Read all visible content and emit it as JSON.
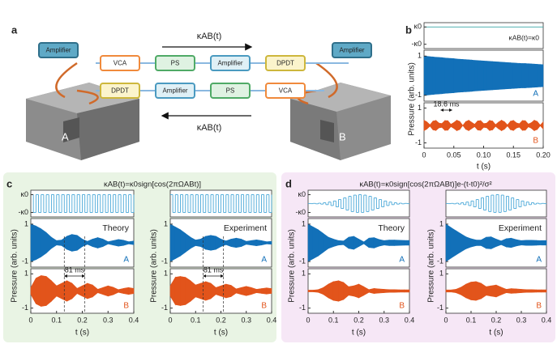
{
  "diagram": {
    "label": "a",
    "arrow_top": "κAB(t)",
    "arrow_bottom": "κAB(t)",
    "blocks": [
      "A",
      "B"
    ],
    "boxes": [
      "Amplifier",
      "VCA",
      "PS",
      "Amplifier",
      "DPDT",
      "Amplifier",
      "DPDT",
      "Amplifier",
      "PS",
      "VCA"
    ]
  },
  "panels": [
    {
      "label": "b"
    },
    {
      "label": "c",
      "title": "κAB(t)=κ0sign[cos(2πΩABt)]"
    },
    {
      "label": "d",
      "title": "κAB(t)=κ0sign[cos(2πΩABt)]e-(t-t0)²/σ²"
    }
  ],
  "chart_data": [
    {
      "type": "area",
      "title": "κAB(t)=κ0",
      "xlabel": "t (s)",
      "ylabel": "Pressure (arb. units)",
      "xlim": [
        0,
        0.2
      ],
      "xticks": [
        0,
        0.05,
        {
          "value": 0.1,
          "label": "0.10"
        },
        0.15,
        {
          "value": 0.2,
          "label": "0.20"
        }
      ],
      "ylim": [
        -1.3,
        1.3
      ],
      "yticks": [
        1,
        -1
      ],
      "kappa_ylim": [
        -1.5,
        1.5
      ],
      "kappa_ticks": [
        {
          "value": 1,
          "label": "κ0"
        },
        {
          "value": -1,
          "label": "-κ0"
        }
      ],
      "kappa_color": "#3aa6a6",
      "kappa": {
        "x": [
          0,
          0.2
        ],
        "values": [
          1,
          1
        ]
      },
      "annotation": "18.6 ms",
      "annotation_span": [
        0.028,
        0.047
      ],
      "dashed": false,
      "x": [
        0,
        0.005,
        0.01,
        0.015,
        0.02,
        0.025,
        0.03,
        0.035,
        0.04,
        0.045,
        0.05,
        0.055,
        0.06,
        0.065,
        0.07,
        0.075,
        0.08,
        0.085,
        0.09,
        0.095,
        0.1,
        0.105,
        0.11,
        0.115,
        0.12,
        0.125,
        0.13,
        0.135,
        0.14,
        0.145,
        0.15,
        0.155,
        0.16,
        0.165,
        0.17,
        0.175,
        0.18,
        0.185,
        0.19,
        0.195,
        0.2
      ],
      "series": [
        {
          "name": "A",
          "color": "#1270b8",
          "values": [
            1,
            0.99,
            0.97,
            0.96,
            0.94,
            0.93,
            0.92,
            0.9,
            0.89,
            0.88,
            0.87,
            0.85,
            0.84,
            0.83,
            0.82,
            0.81,
            0.8,
            0.78,
            0.77,
            0.76,
            0.75,
            0.74,
            0.73,
            0.72,
            0.71,
            0.7,
            0.69,
            0.68,
            0.67,
            0.66,
            0.65,
            0.64,
            0.63,
            0.62,
            0.62,
            0.61,
            0.6,
            0.59,
            0.58,
            0.57,
            0.56
          ]
        },
        {
          "name": "B",
          "color": "#e2541b",
          "values": [
            0.3,
            0.2,
            0.04,
            0.25,
            0.29,
            0.14,
            0.11,
            0.28,
            0.27,
            0.07,
            0.17,
            0.3,
            0.23,
            0,
            0.22,
            0.3,
            0.18,
            0.07,
            0.26,
            0.28,
            0.11,
            0.13,
            0.29,
            0.25,
            0.05,
            0.19,
            0.3,
            0.21,
            0.03,
            0.24,
            0.29,
            0.15,
            0.1,
            0.28,
            0.27,
            0.08,
            0.16,
            0.3,
            0.23,
            0.02,
            0.21
          ]
        }
      ]
    },
    {
      "type": "area",
      "label": "Theory",
      "xlabel": "t (s)",
      "ylabel": "Pressure (arb. units)",
      "xlim": [
        0,
        0.4
      ],
      "xticks": [
        0,
        0.1,
        0.2,
        0.3,
        0.4
      ],
      "ylim": [
        -1.3,
        1.3
      ],
      "yticks": [
        1,
        -1
      ],
      "kappa_ylim": [
        -1.5,
        1.5
      ],
      "kappa_ticks": [
        {
          "value": 1,
          "label": "κ0"
        },
        {
          "value": -1,
          "label": "-κ0"
        }
      ],
      "kappa_color": "#4aa8d8",
      "kappa": {
        "x": [
          0,
          0.01,
          0.02,
          0.03,
          0.04,
          0.05,
          0.06,
          0.07,
          0.08,
          0.09,
          0.1,
          0.11,
          0.12,
          0.13,
          0.14,
          0.15,
          0.16,
          0.17,
          0.18,
          0.19,
          0.2,
          0.21,
          0.22,
          0.23,
          0.24,
          0.25,
          0.26,
          0.27,
          0.28,
          0.29,
          0.3,
          0.31,
          0.32,
          0.33,
          0.34,
          0.35,
          0.36,
          0.37,
          0.38,
          0.39,
          0.4
        ],
        "values": [
          1,
          -1,
          1,
          -1,
          1,
          -1,
          1,
          -1,
          1,
          -1,
          1,
          -1,
          1,
          -1,
          1,
          -1,
          1,
          -1,
          1,
          -1,
          1,
          -1,
          1,
          -1,
          1,
          -1,
          1,
          -1,
          1,
          -1,
          1,
          -1,
          1,
          -1,
          1,
          -1,
          1,
          -1,
          1,
          -1,
          1
        ]
      },
      "annotation": "81 ms",
      "annotation_span": [
        0.13,
        0.21
      ],
      "dashed": true,
      "x": [
        0,
        0.02,
        0.04,
        0.06,
        0.08,
        0.1,
        0.12,
        0.14,
        0.16,
        0.18,
        0.2,
        0.22,
        0.24,
        0.26,
        0.28,
        0.3,
        0.32,
        0.34,
        0.36,
        0.38,
        0.4
      ],
      "series": [
        {
          "name": "A",
          "color": "#1270b8",
          "values": [
            1,
            0.9,
            0.75,
            0.55,
            0.3,
            0.12,
            0.15,
            0.35,
            0.45,
            0.4,
            0.2,
            0.08,
            0.2,
            0.28,
            0.2,
            0.06,
            0.12,
            0.18,
            0.14,
            0.06,
            0.1
          ]
        },
        {
          "name": "B",
          "color": "#e2541b",
          "values": [
            0.2,
            0.75,
            0.9,
            0.85,
            0.6,
            0.3,
            0.45,
            0.6,
            0.45,
            0.15,
            0.3,
            0.45,
            0.35,
            0.1,
            0.2,
            0.3,
            0.22,
            0.08,
            0.15,
            0.2,
            0.15
          ]
        }
      ]
    },
    {
      "type": "area",
      "label": "Experiment",
      "xlabel": "t (s)",
      "ylabel": "Pressure (arb. units)",
      "xlim": [
        0,
        0.4
      ],
      "xticks": [
        0,
        0.1,
        0.2,
        0.3,
        0.4
      ],
      "ylim": [
        -1.3,
        1.3
      ],
      "yticks": [
        1,
        -1
      ],
      "kappa_ylim": [
        -1.5,
        1.5
      ],
      "kappa_color": "#4aa8d8",
      "kappa": {
        "x": [
          0,
          0.01,
          0.02,
          0.03,
          0.04,
          0.05,
          0.06,
          0.07,
          0.08,
          0.09,
          0.1,
          0.11,
          0.12,
          0.13,
          0.14,
          0.15,
          0.16,
          0.17,
          0.18,
          0.19,
          0.2,
          0.21,
          0.22,
          0.23,
          0.24,
          0.25,
          0.26,
          0.27,
          0.28,
          0.29,
          0.3,
          0.31,
          0.32,
          0.33,
          0.34,
          0.35,
          0.36,
          0.37,
          0.38,
          0.39,
          0.4
        ],
        "values": [
          1,
          -1,
          1,
          -1,
          1,
          -1,
          1,
          -1,
          1,
          -1,
          1,
          -1,
          1,
          -1,
          1,
          -1,
          1,
          -1,
          1,
          -1,
          1,
          -1,
          1,
          -1,
          1,
          -1,
          1,
          -1,
          1,
          -1,
          1,
          -1,
          1,
          -1,
          1,
          -1,
          1,
          -1,
          1,
          -1,
          1
        ]
      },
      "annotation": "81 ms",
      "annotation_span": [
        0.13,
        0.21
      ],
      "dashed": true,
      "x": [
        0,
        0.02,
        0.04,
        0.06,
        0.08,
        0.1,
        0.12,
        0.14,
        0.16,
        0.18,
        0.2,
        0.22,
        0.24,
        0.26,
        0.28,
        0.3,
        0.32,
        0.34,
        0.36,
        0.38,
        0.4
      ],
      "series": [
        {
          "name": "A",
          "color": "#1270b8",
          "values": [
            1,
            0.85,
            0.7,
            0.5,
            0.3,
            0.15,
            0.2,
            0.35,
            0.4,
            0.35,
            0.2,
            0.1,
            0.2,
            0.25,
            0.2,
            0.08,
            0.12,
            0.16,
            0.12,
            0.06,
            0.08
          ]
        },
        {
          "name": "B",
          "color": "#e2541b",
          "values": [
            0.3,
            0.8,
            0.85,
            0.8,
            0.6,
            0.35,
            0.45,
            0.55,
            0.45,
            0.2,
            0.3,
            0.4,
            0.33,
            0.12,
            0.2,
            0.27,
            0.2,
            0.1,
            0.14,
            0.18,
            0.14
          ]
        }
      ]
    },
    {
      "type": "area",
      "label": "Theory",
      "xlabel": "t (s)",
      "ylabel": "Pressure (arb. units)",
      "xlim": [
        0,
        0.4
      ],
      "xticks": [
        0,
        0.1,
        0.2,
        0.3,
        0.4
      ],
      "ylim": [
        -1.3,
        1.3
      ],
      "yticks": [
        1,
        -1
      ],
      "kappa_ylim": [
        -1.5,
        1.5
      ],
      "kappa_ticks": [
        {
          "value": 1,
          "label": "κ0"
        },
        {
          "value": -1,
          "label": "-κ0"
        }
      ],
      "kappa_color": "#4aa8d8",
      "kappa": {
        "x": [
          0,
          0.01,
          0.02,
          0.03,
          0.04,
          0.05,
          0.06,
          0.07,
          0.08,
          0.09,
          0.1,
          0.11,
          0.12,
          0.13,
          0.14,
          0.15,
          0.16,
          0.17,
          0.18,
          0.19,
          0.2,
          0.21,
          0.22,
          0.23,
          0.24,
          0.25,
          0.26,
          0.27,
          0.28,
          0.29,
          0.3,
          0.31,
          0.32,
          0.33,
          0.34,
          0.35,
          0.36,
          0.37,
          0.38,
          0.39,
          0.4
        ],
        "values": [
          0.01,
          -0.01,
          0.02,
          -0.03,
          0.04,
          -0.06,
          0.09,
          -0.12,
          0.17,
          -0.22,
          0.29,
          -0.37,
          0.45,
          -0.55,
          0.64,
          -0.73,
          0.82,
          -0.9,
          0.95,
          -0.99,
          1,
          -0.99,
          0.95,
          -0.9,
          0.82,
          -0.73,
          0.64,
          -0.55,
          0.45,
          -0.37,
          0.29,
          -0.22,
          0.17,
          -0.12,
          0.09,
          -0.06,
          0.04,
          -0.03,
          0.02,
          -0.01,
          0.01
        ]
      },
      "x": [
        0,
        0.02,
        0.04,
        0.06,
        0.08,
        0.1,
        0.12,
        0.14,
        0.16,
        0.18,
        0.2,
        0.22,
        0.24,
        0.26,
        0.28,
        0.3,
        0.32,
        0.34,
        0.36,
        0.38,
        0.4
      ],
      "series": [
        {
          "name": "A",
          "color": "#1270b8",
          "values": [
            1,
            0.85,
            0.7,
            0.5,
            0.3,
            0.2,
            0.12,
            0.1,
            0.3,
            0.35,
            0.2,
            0.05,
            0.25,
            0.28,
            0.18,
            0.12,
            0.15,
            0.15,
            0.14,
            0.13,
            0.13
          ]
        },
        {
          "name": "B",
          "color": "#e2541b",
          "values": [
            0.05,
            0.05,
            0.08,
            0.2,
            0.4,
            0.55,
            0.6,
            0.5,
            0.25,
            0.3,
            0.4,
            0.25,
            0.08,
            0.15,
            0.12,
            0.1,
            0.08,
            0.08,
            0.07,
            0.07,
            0.07
          ]
        }
      ]
    },
    {
      "type": "area",
      "label": "Experiment",
      "xlabel": "t (s)",
      "ylabel": "Pressure (arb. units)",
      "xlim": [
        0,
        0.4
      ],
      "xticks": [
        0,
        0.1,
        0.2,
        0.3,
        0.4
      ],
      "ylim": [
        -1.3,
        1.3
      ],
      "yticks": [
        1,
        -1
      ],
      "kappa_ylim": [
        -1.5,
        1.5
      ],
      "kappa_color": "#4aa8d8",
      "kappa": {
        "x": [
          0,
          0.01,
          0.02,
          0.03,
          0.04,
          0.05,
          0.06,
          0.07,
          0.08,
          0.09,
          0.1,
          0.11,
          0.12,
          0.13,
          0.14,
          0.15,
          0.16,
          0.17,
          0.18,
          0.19,
          0.2,
          0.21,
          0.22,
          0.23,
          0.24,
          0.25,
          0.26,
          0.27,
          0.28,
          0.29,
          0.3,
          0.31,
          0.32,
          0.33,
          0.34,
          0.35,
          0.36,
          0.37,
          0.38,
          0.39,
          0.4
        ],
        "values": [
          0.01,
          -0.01,
          0.02,
          -0.03,
          0.04,
          -0.06,
          0.09,
          -0.12,
          0.17,
          -0.22,
          0.29,
          -0.37,
          0.45,
          -0.55,
          0.64,
          -0.73,
          0.82,
          -0.9,
          0.95,
          -0.99,
          1,
          -0.99,
          0.95,
          -0.9,
          0.82,
          -0.73,
          0.64,
          -0.55,
          0.45,
          -0.37,
          0.29,
          -0.22,
          0.17,
          -0.12,
          0.09,
          -0.06,
          0.04,
          -0.03,
          0.02,
          -0.01,
          0.01
        ]
      },
      "x": [
        0,
        0.02,
        0.04,
        0.06,
        0.08,
        0.1,
        0.12,
        0.14,
        0.16,
        0.18,
        0.2,
        0.22,
        0.24,
        0.26,
        0.28,
        0.3,
        0.32,
        0.34,
        0.36,
        0.38,
        0.4
      ],
      "series": [
        {
          "name": "A",
          "color": "#1270b8",
          "values": [
            1,
            0.82,
            0.65,
            0.48,
            0.32,
            0.22,
            0.15,
            0.15,
            0.3,
            0.32,
            0.2,
            0.1,
            0.22,
            0.25,
            0.17,
            0.12,
            0.14,
            0.14,
            0.13,
            0.12,
            0.12
          ]
        },
        {
          "name": "B",
          "color": "#e2541b",
          "values": [
            0.06,
            0.06,
            0.1,
            0.22,
            0.4,
            0.52,
            0.55,
            0.45,
            0.25,
            0.3,
            0.35,
            0.22,
            0.1,
            0.14,
            0.12,
            0.1,
            0.08,
            0.08,
            0.07,
            0.07,
            0.07
          ]
        }
      ]
    }
  ]
}
